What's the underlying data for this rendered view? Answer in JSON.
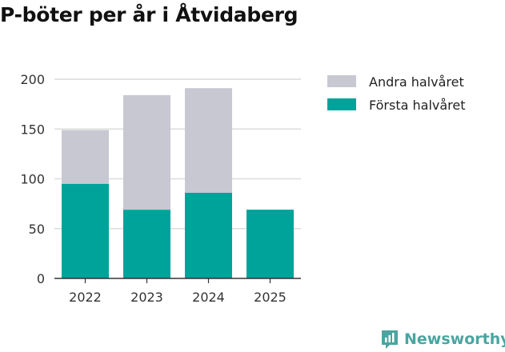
{
  "chart_data": {
    "type": "bar",
    "stacked": true,
    "title": "P-böter per år i Åtvidaberg",
    "categories": [
      "2022",
      "2023",
      "2024",
      "2025"
    ],
    "series": [
      {
        "name": "Första halvåret",
        "color": "#00a39a",
        "values": [
          95,
          69,
          86,
          69
        ]
      },
      {
        "name": "Andra halvåret",
        "color": "#c8c8d2",
        "values": [
          54,
          115,
          105,
          0
        ]
      }
    ],
    "legend_order": [
      "Andra halvåret",
      "Första halvåret"
    ],
    "yticks": [
      0,
      50,
      100,
      150,
      200
    ],
    "ylim": [
      0,
      210
    ],
    "grid": true,
    "legend_position": "right",
    "xlabel": "",
    "ylabel": ""
  },
  "branding": {
    "logo_text": "Newsworthy",
    "logo_color": "#4aa5a0"
  }
}
